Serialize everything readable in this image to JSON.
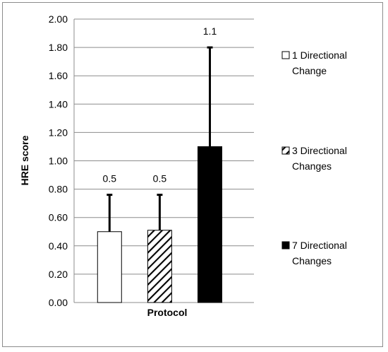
{
  "chart_data": {
    "type": "bar",
    "title": "",
    "xlabel": "Protocol",
    "ylabel": "HRE score",
    "ylim": [
      0,
      2
    ],
    "ytick_step": 0.2,
    "yticks": [
      "0.00",
      "0.20",
      "0.40",
      "0.60",
      "0.80",
      "1.00",
      "1.20",
      "1.40",
      "1.60",
      "1.80",
      "2.00"
    ],
    "grid": true,
    "legend_position": "right",
    "categories": [
      "1 Directional Change",
      "3 Directional Changes",
      "7 Directional Changes"
    ],
    "series": [
      {
        "name": "1 Directional Change",
        "value": 0.5,
        "error": 0.26,
        "data_label": "0.5",
        "fill": "white",
        "legend_lines": [
          "1 Directional",
          "Change"
        ]
      },
      {
        "name": "3 Directional Changes",
        "value": 0.51,
        "error": 0.25,
        "data_label": "0.5",
        "fill": "hatched",
        "legend_lines": [
          "3 Directional",
          "Changes"
        ]
      },
      {
        "name": "7 Directional Changes",
        "value": 1.1,
        "error": 0.7,
        "data_label": "1.1",
        "fill": "black",
        "legend_lines": [
          "7 Directional",
          "Changes"
        ]
      }
    ],
    "colors": {
      "bar_stroke": "#000000",
      "grid": "#8c8c8c",
      "axis": "#8c8c8c",
      "black_fill": "#000000"
    }
  }
}
